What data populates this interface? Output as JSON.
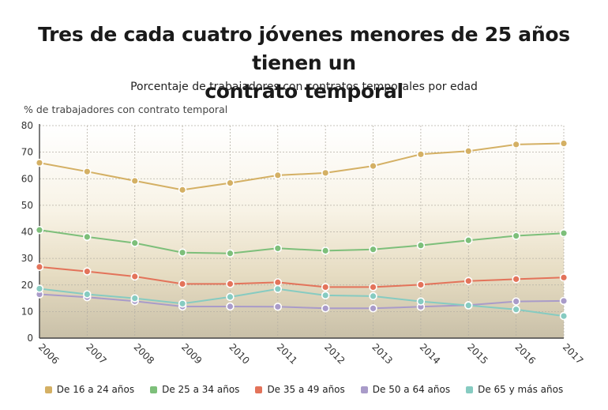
{
  "chart_data": {
    "type": "line",
    "title": "Tres de cada cuatro jóvenes menores de 25 años tienen un contrato temporal",
    "subtitle": "Porcentaje de trabajadores con contratos temporales por edad",
    "ylabel": "% de trabajadores con contrato temporal",
    "xlabel": "",
    "ylim": [
      0,
      80
    ],
    "yticks": [
      0,
      10,
      20,
      30,
      40,
      50,
      60,
      70,
      80
    ],
    "x": [
      "2006",
      "2007",
      "2008",
      "2009",
      "2010",
      "2011",
      "2012",
      "2013",
      "2014",
      "2015",
      "2016",
      "2017"
    ],
    "grid": true,
    "legend_position": "bottom",
    "series": [
      {
        "name": "De 16 a 24 años",
        "color": "#d4b064",
        "values": [
          66.0,
          62.7,
          59.2,
          55.8,
          58.4,
          61.3,
          62.2,
          64.8,
          69.2,
          70.4,
          72.9,
          73.3
        ]
      },
      {
        "name": "De 25 a 34 años",
        "color": "#7dbf7a",
        "values": [
          40.7,
          38.1,
          35.8,
          32.2,
          31.9,
          33.8,
          32.9,
          33.4,
          34.9,
          36.8,
          38.5,
          39.5
        ]
      },
      {
        "name": "De 35 a 49 años",
        "color": "#e3735a",
        "values": [
          26.8,
          25.1,
          23.2,
          20.4,
          20.4,
          21.0,
          19.2,
          19.2,
          20.1,
          21.5,
          22.2,
          22.8
        ]
      },
      {
        "name": "De 50 a 64 años",
        "color": "#a99bc9",
        "values": [
          16.5,
          15.4,
          13.9,
          11.9,
          11.9,
          11.8,
          11.2,
          11.2,
          11.8,
          12.4,
          13.8,
          14.0
        ]
      },
      {
        "name": "De 65 y más años",
        "color": "#86cbc1",
        "values": [
          18.6,
          16.5,
          15.0,
          13.0,
          15.5,
          18.5,
          16.1,
          15.8,
          13.8,
          12.3,
          10.8,
          8.3
        ]
      }
    ]
  }
}
